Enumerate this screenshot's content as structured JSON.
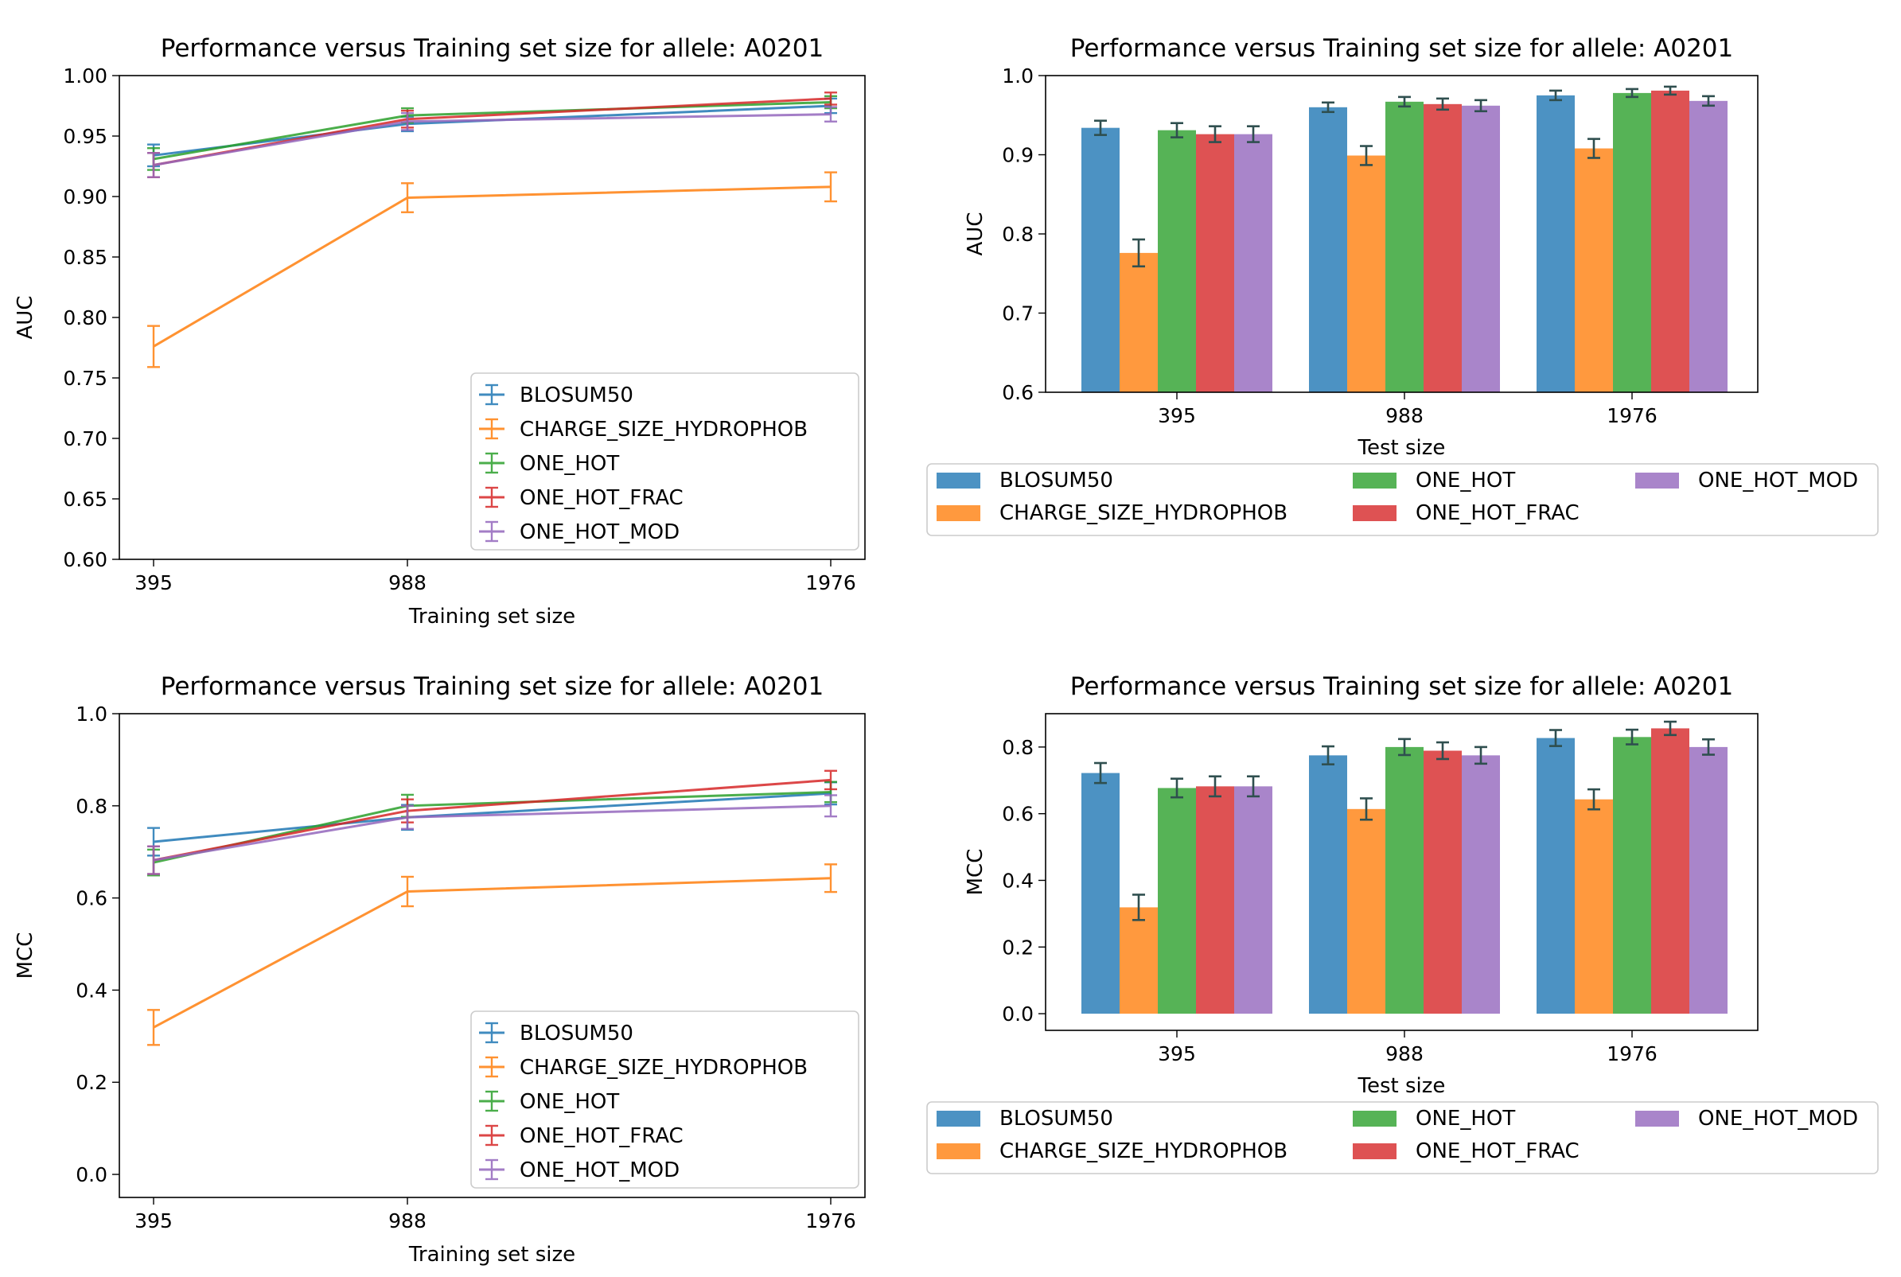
{
  "colors": {
    "BLOSUM50": "#1f77b4",
    "CHARGE_SIZE_HYDROPHOB": "#ff7f0e",
    "ONE_HOT": "#2ca02c",
    "ONE_HOT_FRAC": "#d62728",
    "ONE_HOT_MOD": "#9467bd",
    "errorbar_bar": "#2f4f4f"
  },
  "chart_data": [
    {
      "type": "line",
      "title": "Performance versus Training set size for allele: A0201",
      "xlabel": "Training set size",
      "ylabel": "AUC",
      "x": [
        395,
        988,
        1976
      ],
      "xticks": [
        "395",
        "988",
        "1976"
      ],
      "ylim": [
        0.6,
        1.0
      ],
      "yticks": [
        "0.60",
        "0.65",
        "0.70",
        "0.75",
        "0.80",
        "0.85",
        "0.90",
        "0.95",
        "1.00"
      ],
      "legend_location": "lower right",
      "grid": false,
      "series": [
        {
          "name": "BLOSUM50",
          "values": [
            0.934,
            0.96,
            0.975
          ],
          "errors": [
            0.009,
            0.006,
            0.006
          ]
        },
        {
          "name": "CHARGE_SIZE_HYDROPHOB",
          "values": [
            0.776,
            0.899,
            0.908
          ],
          "errors": [
            0.017,
            0.012,
            0.012
          ]
        },
        {
          "name": "ONE_HOT",
          "values": [
            0.931,
            0.967,
            0.978
          ],
          "errors": [
            0.009,
            0.006,
            0.005
          ]
        },
        {
          "name": "ONE_HOT_FRAC",
          "values": [
            0.926,
            0.964,
            0.981
          ],
          "errors": [
            0.01,
            0.007,
            0.005
          ]
        },
        {
          "name": "ONE_HOT_MOD",
          "values": [
            0.926,
            0.962,
            0.968
          ],
          "errors": [
            0.01,
            0.007,
            0.006
          ]
        }
      ]
    },
    {
      "type": "bar",
      "title": "Performance versus Training set size for allele: A0201",
      "xlabel": "Test size",
      "ylabel": "AUC",
      "categories": [
        "395",
        "988",
        "1976"
      ],
      "ylim": [
        0.6,
        1.0
      ],
      "yticks": [
        "0.6",
        "0.7",
        "0.8",
        "0.9",
        "1.0"
      ],
      "legend_location": "below",
      "grid": false,
      "series": [
        {
          "name": "BLOSUM50",
          "values": [
            0.934,
            0.96,
            0.975
          ],
          "errors": [
            0.009,
            0.006,
            0.006
          ]
        },
        {
          "name": "CHARGE_SIZE_HYDROPHOB",
          "values": [
            0.776,
            0.899,
            0.908
          ],
          "errors": [
            0.017,
            0.012,
            0.012
          ]
        },
        {
          "name": "ONE_HOT",
          "values": [
            0.931,
            0.967,
            0.978
          ],
          "errors": [
            0.009,
            0.006,
            0.005
          ]
        },
        {
          "name": "ONE_HOT_FRAC",
          "values": [
            0.926,
            0.964,
            0.981
          ],
          "errors": [
            0.01,
            0.007,
            0.005
          ]
        },
        {
          "name": "ONE_HOT_MOD",
          "values": [
            0.926,
            0.962,
            0.968
          ],
          "errors": [
            0.01,
            0.007,
            0.006
          ]
        }
      ]
    },
    {
      "type": "line",
      "title": "Performance versus Training set size for allele: A0201",
      "xlabel": "Training set size",
      "ylabel": "MCC",
      "x": [
        395,
        988,
        1976
      ],
      "xticks": [
        "395",
        "988",
        "1976"
      ],
      "ylim": [
        -0.05,
        1.0
      ],
      "yticks": [
        "0.0",
        "0.2",
        "0.4",
        "0.6",
        "0.8",
        "1.0"
      ],
      "legend_location": "lower right",
      "grid": false,
      "series": [
        {
          "name": "BLOSUM50",
          "values": [
            0.722,
            0.775,
            0.827
          ],
          "errors": [
            0.03,
            0.027,
            0.024
          ]
        },
        {
          "name": "CHARGE_SIZE_HYDROPHOB",
          "values": [
            0.319,
            0.614,
            0.643
          ],
          "errors": [
            0.038,
            0.032,
            0.03
          ]
        },
        {
          "name": "ONE_HOT",
          "values": [
            0.677,
            0.8,
            0.83
          ],
          "errors": [
            0.028,
            0.024,
            0.022
          ]
        },
        {
          "name": "ONE_HOT_FRAC",
          "values": [
            0.682,
            0.789,
            0.856
          ],
          "errors": [
            0.03,
            0.025,
            0.02
          ]
        },
        {
          "name": "ONE_HOT_MOD",
          "values": [
            0.682,
            0.775,
            0.8
          ],
          "errors": [
            0.03,
            0.025,
            0.023
          ]
        }
      ]
    },
    {
      "type": "bar",
      "title": "Performance versus Training set size for allele: A0201",
      "xlabel": "Test size",
      "ylabel": "MCC",
      "categories": [
        "395",
        "988",
        "1976"
      ],
      "ylim": [
        -0.05,
        0.9
      ],
      "yticks": [
        "0.0",
        "0.2",
        "0.4",
        "0.6",
        "0.8"
      ],
      "legend_location": "below",
      "grid": false,
      "series": [
        {
          "name": "BLOSUM50",
          "values": [
            0.722,
            0.775,
            0.827
          ],
          "errors": [
            0.03,
            0.027,
            0.024
          ]
        },
        {
          "name": "CHARGE_SIZE_HYDROPHOB",
          "values": [
            0.319,
            0.614,
            0.643
          ],
          "errors": [
            0.038,
            0.032,
            0.03
          ]
        },
        {
          "name": "ONE_HOT",
          "values": [
            0.677,
            0.8,
            0.83
          ],
          "errors": [
            0.028,
            0.024,
            0.022
          ]
        },
        {
          "name": "ONE_HOT_FRAC",
          "values": [
            0.682,
            0.789,
            0.856
          ],
          "errors": [
            0.03,
            0.025,
            0.02
          ]
        },
        {
          "name": "ONE_HOT_MOD",
          "values": [
            0.682,
            0.775,
            0.8
          ],
          "errors": [
            0.03,
            0.025,
            0.023
          ]
        }
      ]
    }
  ]
}
